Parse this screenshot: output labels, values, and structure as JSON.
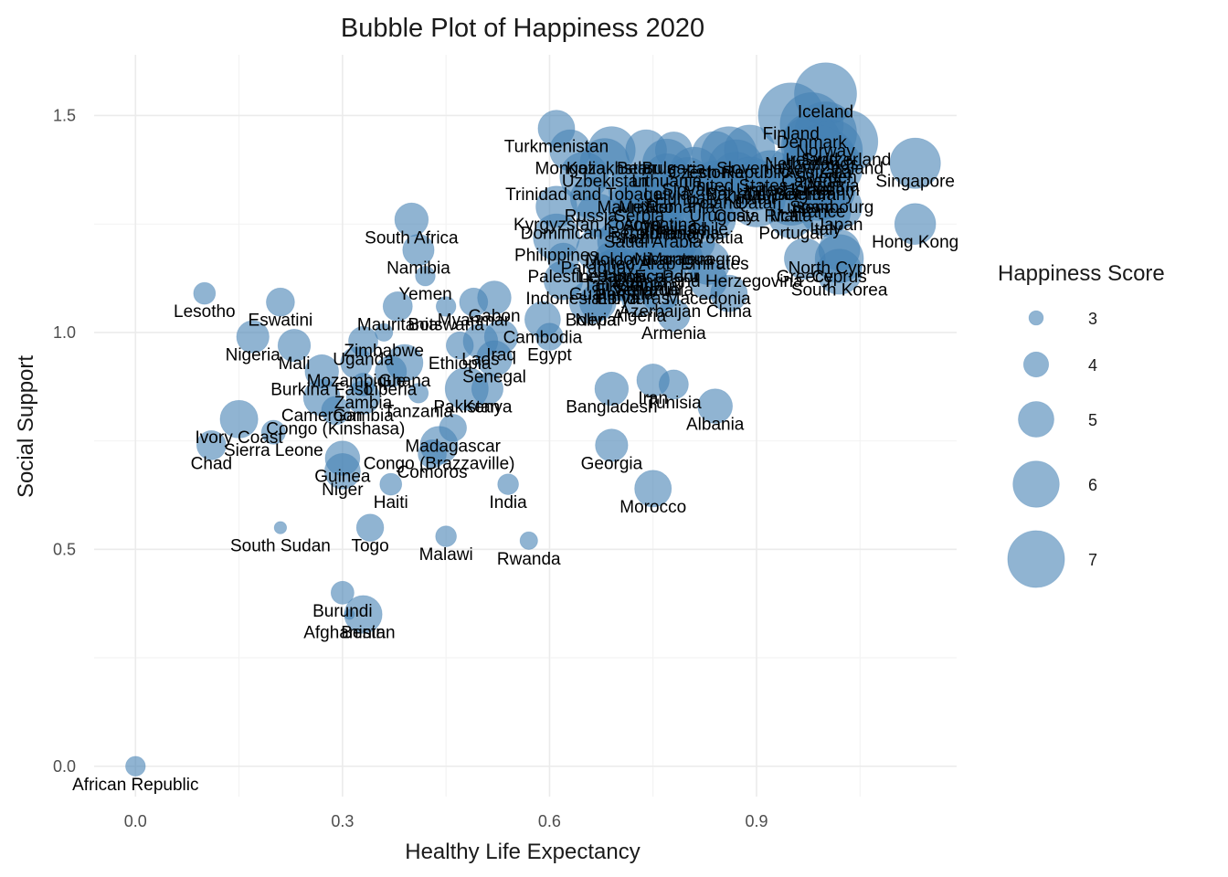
{
  "chart_data": {
    "type": "scatter",
    "title": "Bubble Plot of Happiness 2020",
    "xlabel": "Healthy Life Expectancy",
    "ylabel": "Social Support",
    "xlim": [
      -0.06,
      1.19
    ],
    "ylim": [
      -0.07,
      1.64
    ],
    "x_ticks": [
      0.0,
      0.3,
      0.6,
      0.9
    ],
    "x_tick_labels": [
      "0.0",
      "0.3",
      "0.6",
      "0.9"
    ],
    "y_ticks": [
      0.0,
      0.5,
      1.0,
      1.5
    ],
    "y_tick_labels": [
      "0.0",
      "0.5",
      "1.0",
      "1.5"
    ],
    "grid": true,
    "bubble_color": "#4682b4",
    "legend": {
      "title": "Happiness Score",
      "position": "right",
      "values": [
        3,
        4,
        5,
        6,
        7
      ],
      "labels": [
        "3",
        "4",
        "5",
        "6",
        "7"
      ]
    },
    "points": [
      {
        "label": "African Republic",
        "x": 0.0,
        "y": 0.0,
        "size": 3.5
      },
      {
        "label": "Lesotho",
        "x": 0.1,
        "y": 1.09,
        "size": 3.7
      },
      {
        "label": "Eswatini",
        "x": 0.21,
        "y": 1.07,
        "size": 4.3
      },
      {
        "label": "Nigeria",
        "x": 0.17,
        "y": 0.99,
        "size": 4.7
      },
      {
        "label": "Mali",
        "x": 0.23,
        "y": 0.97,
        "size": 4.7
      },
      {
        "label": "Ivory Coast",
        "x": 0.15,
        "y": 0.8,
        "size": 5.2
      },
      {
        "label": "Chad",
        "x": 0.11,
        "y": 0.74,
        "size": 4.4
      },
      {
        "label": "Sierra Leone",
        "x": 0.2,
        "y": 0.77,
        "size": 3.9
      },
      {
        "label": "South Sudan",
        "x": 0.21,
        "y": 0.55,
        "size": 2.8
      },
      {
        "label": "Burkina Faso",
        "x": 0.27,
        "y": 0.91,
        "size": 4.8
      },
      {
        "label": "Cameroon",
        "x": 0.27,
        "y": 0.85,
        "size": 5.1
      },
      {
        "label": "Congo (Kinshasa)",
        "x": 0.29,
        "y": 0.82,
        "size": 4.3
      },
      {
        "label": "Gambia",
        "x": 0.33,
        "y": 0.85,
        "size": 4.8
      },
      {
        "label": "Guinea",
        "x": 0.3,
        "y": 0.71,
        "size": 4.9
      },
      {
        "label": "Niger",
        "x": 0.3,
        "y": 0.68,
        "size": 5.0
      },
      {
        "label": "Mozambique",
        "x": 0.32,
        "y": 0.93,
        "size": 4.6
      },
      {
        "label": "Zambia",
        "x": 0.33,
        "y": 0.88,
        "size": 3.8
      },
      {
        "label": "Uganda",
        "x": 0.33,
        "y": 0.98,
        "size": 4.4
      },
      {
        "label": "Zimbabwe",
        "x": 0.36,
        "y": 1.0,
        "size": 3.3
      },
      {
        "label": "Liberia",
        "x": 0.37,
        "y": 0.91,
        "size": 4.6
      },
      {
        "label": "Ghana",
        "x": 0.39,
        "y": 0.93,
        "size": 5.1
      },
      {
        "label": "Tanzania",
        "x": 0.41,
        "y": 0.86,
        "size": 3.5
      },
      {
        "label": "Haiti",
        "x": 0.37,
        "y": 0.65,
        "size": 3.7
      },
      {
        "label": "Togo",
        "x": 0.34,
        "y": 0.55,
        "size": 4.2
      },
      {
        "label": "Burundi",
        "x": 0.3,
        "y": 0.4,
        "size": 3.8
      },
      {
        "label": "Afghanistan",
        "x": 0.31,
        "y": 0.35,
        "size": 2.6
      },
      {
        "label": "Benin",
        "x": 0.33,
        "y": 0.35,
        "size": 5.2
      },
      {
        "label": "Malawi",
        "x": 0.45,
        "y": 0.53,
        "size": 3.6
      },
      {
        "label": "Rwanda",
        "x": 0.57,
        "y": 0.52,
        "size": 3.3
      },
      {
        "label": "India",
        "x": 0.54,
        "y": 0.65,
        "size": 3.6
      },
      {
        "label": "Comoros",
        "x": 0.43,
        "y": 0.72,
        "size": 4.3
      },
      {
        "label": "Congo (Brazzaville)",
        "x": 0.44,
        "y": 0.74,
        "size": 5.2
      },
      {
        "label": "Madagascar",
        "x": 0.46,
        "y": 0.78,
        "size": 4.2
      },
      {
        "label": "Pakistan",
        "x": 0.48,
        "y": 0.87,
        "size": 5.7
      },
      {
        "label": "Kenya",
        "x": 0.51,
        "y": 0.87,
        "size": 4.6
      },
      {
        "label": "Senegal",
        "x": 0.52,
        "y": 0.94,
        "size": 5.0
      },
      {
        "label": "Ethiopia",
        "x": 0.47,
        "y": 0.97,
        "size": 4.2
      },
      {
        "label": "Laos",
        "x": 0.5,
        "y": 0.98,
        "size": 4.9
      },
      {
        "label": "Iraq",
        "x": 0.53,
        "y": 0.99,
        "size": 4.8
      },
      {
        "label": "Egypt",
        "x": 0.6,
        "y": 0.99,
        "size": 4.2
      },
      {
        "label": "Cambodia",
        "x": 0.59,
        "y": 1.03,
        "size": 5.0
      },
      {
        "label": "Mauritania",
        "x": 0.38,
        "y": 1.06,
        "size": 4.4
      },
      {
        "label": "Botswana",
        "x": 0.45,
        "y": 1.06,
        "size": 3.5
      },
      {
        "label": "Myanmar",
        "x": 0.49,
        "y": 1.07,
        "size": 4.3
      },
      {
        "label": "Gabon",
        "x": 0.52,
        "y": 1.08,
        "size": 4.8
      },
      {
        "label": "Yemen",
        "x": 0.42,
        "y": 1.13,
        "size": 3.5
      },
      {
        "label": "Namibia",
        "x": 0.41,
        "y": 1.19,
        "size": 4.6
      },
      {
        "label": "South Africa",
        "x": 0.4,
        "y": 1.26,
        "size": 4.8
      },
      {
        "label": "Nepal",
        "x": 0.67,
        "y": 1.07,
        "size": 5.1
      },
      {
        "label": "Armenia",
        "x": 0.78,
        "y": 1.04,
        "size": 4.7
      },
      {
        "label": "Bangladesh",
        "x": 0.69,
        "y": 0.87,
        "size": 4.8
      },
      {
        "label": "Iran",
        "x": 0.75,
        "y": 0.89,
        "size": 4.7
      },
      {
        "label": "Tunisia",
        "x": 0.78,
        "y": 0.88,
        "size": 4.4
      },
      {
        "label": "Albania",
        "x": 0.84,
        "y": 0.83,
        "size": 4.9
      },
      {
        "label": "Georgia",
        "x": 0.69,
        "y": 0.74,
        "size": 4.7
      },
      {
        "label": "Morocco",
        "x": 0.75,
        "y": 0.64,
        "size": 5.1
      },
      {
        "label": "Indonesia",
        "x": 0.62,
        "y": 1.12,
        "size": 5.3
      },
      {
        "label": "Bolivia",
        "x": 0.66,
        "y": 1.07,
        "size": 5.7
      },
      {
        "label": "Algeria",
        "x": 0.73,
        "y": 1.08,
        "size": 5.0
      },
      {
        "label": "Azerbaijan",
        "x": 0.76,
        "y": 1.09,
        "size": 5.2
      },
      {
        "label": "China",
        "x": 0.86,
        "y": 1.09,
        "size": 5.1
      },
      {
        "label": "Macedonia",
        "x": 0.83,
        "y": 1.12,
        "size": 5.2
      },
      {
        "label": "Philippines",
        "x": 0.61,
        "y": 1.22,
        "size": 6.0
      },
      {
        "label": "Palestine",
        "x": 0.62,
        "y": 1.17,
        "size": 4.6
      },
      {
        "label": "Paraguay",
        "x": 0.67,
        "y": 1.19,
        "size": 5.7
      },
      {
        "label": "Moldova",
        "x": 0.7,
        "y": 1.21,
        "size": 5.6
      },
      {
        "label": "Lebanon",
        "x": 0.69,
        "y": 1.17,
        "size": 4.8
      },
      {
        "label": "Jamaica",
        "x": 0.72,
        "y": 1.17,
        "size": 5.9
      },
      {
        "label": "Tajikistan",
        "x": 0.7,
        "y": 1.15,
        "size": 5.6
      },
      {
        "label": "Vietnam",
        "x": 0.74,
        "y": 1.15,
        "size": 5.4
      },
      {
        "label": "Ecuador",
        "x": 0.77,
        "y": 1.17,
        "size": 5.9
      },
      {
        "label": "Libya",
        "x": 0.7,
        "y": 1.12,
        "size": 5.5
      },
      {
        "label": "El Salvador",
        "x": 0.73,
        "y": 1.14,
        "size": 6.3
      },
      {
        "label": "Guatemala",
        "x": 0.69,
        "y": 1.13,
        "size": 6.4
      },
      {
        "label": "Honduras",
        "x": 0.72,
        "y": 1.12,
        "size": 5.9
      },
      {
        "label": "Venezuela",
        "x": 0.75,
        "y": 1.14,
        "size": 5.1
      },
      {
        "label": "Nicaragua",
        "x": 0.78,
        "y": 1.21,
        "size": 6.1
      },
      {
        "label": "Montenegro",
        "x": 0.81,
        "y": 1.21,
        "size": 5.5
      },
      {
        "label": "United Arab Emirates",
        "x": 0.77,
        "y": 1.2,
        "size": 6.8
      },
      {
        "label": "Bosnia and Herzegovina",
        "x": 0.83,
        "y": 1.16,
        "size": 5.7
      },
      {
        "label": "Peru",
        "x": 0.79,
        "y": 1.17,
        "size": 5.8
      },
      {
        "label": "Greece",
        "x": 0.97,
        "y": 1.17,
        "size": 5.5
      },
      {
        "label": "North Cyprus",
        "x": 1.02,
        "y": 1.19,
        "size": 5.5
      },
      {
        "label": "South Korea",
        "x": 1.02,
        "y": 1.14,
        "size": 5.9
      },
      {
        "label": "Cyprus",
        "x": 1.02,
        "y": 1.17,
        "size": 6.2
      },
      {
        "label": "Hong Kong",
        "x": 1.13,
        "y": 1.25,
        "size": 5.5
      },
      {
        "label": "Kyrgyzstan",
        "x": 0.61,
        "y": 1.29,
        "size": 5.5
      },
      {
        "label": "Dominican Republic",
        "x": 0.67,
        "y": 1.27,
        "size": 5.7
      },
      {
        "label": "Kosovo",
        "x": 0.72,
        "y": 1.29,
        "size": 6.3
      },
      {
        "label": "Saudi Arabia",
        "x": 0.75,
        "y": 1.25,
        "size": 6.4
      },
      {
        "label": "Argentina",
        "x": 0.76,
        "y": 1.29,
        "size": 6.0
      },
      {
        "label": "Croatia",
        "x": 0.84,
        "y": 1.26,
        "size": 5.5
      },
      {
        "label": "Chile",
        "x": 0.83,
        "y": 1.28,
        "size": 6.2
      },
      {
        "label": "Colombia",
        "x": 0.76,
        "y": 1.27,
        "size": 6.2
      },
      {
        "label": "Brazil",
        "x": 0.72,
        "y": 1.26,
        "size": 6.4
      },
      {
        "label": "Thailand",
        "x": 0.78,
        "y": 1.28,
        "size": 5.9
      },
      {
        "label": "Panama",
        "x": 0.8,
        "y": 1.27,
        "size": 6.3
      },
      {
        "label": "Uruguay",
        "x": 0.85,
        "y": 1.31,
        "size": 6.4
      },
      {
        "label": "Portugal",
        "x": 0.95,
        "y": 1.27,
        "size": 5.9
      },
      {
        "label": "Italy",
        "x": 1.0,
        "y": 1.28,
        "size": 6.4
      },
      {
        "label": "Japan",
        "x": 1.02,
        "y": 1.29,
        "size": 5.9
      },
      {
        "label": "Costa Rica",
        "x": 0.9,
        "y": 1.31,
        "size": 7.1
      },
      {
        "label": "Spain",
        "x": 0.98,
        "y": 1.33,
        "size": 6.4
      },
      {
        "label": "France",
        "x": 0.99,
        "y": 1.32,
        "size": 6.7
      },
      {
        "label": "Malta",
        "x": 0.95,
        "y": 1.31,
        "size": 6.8
      },
      {
        "label": "Singapore",
        "x": 1.13,
        "y": 1.39,
        "size": 6.4
      },
      {
        "label": "Russia",
        "x": 0.66,
        "y": 1.31,
        "size": 5.5
      },
      {
        "label": "Serbia",
        "x": 0.73,
        "y": 1.31,
        "size": 5.8
      },
      {
        "label": "Mauritius",
        "x": 0.72,
        "y": 1.33,
        "size": 6.1
      },
      {
        "label": "Trinidad and Tobago",
        "x": 0.65,
        "y": 1.36,
        "size": 6.2
      },
      {
        "label": "Romania",
        "x": 0.79,
        "y": 1.33,
        "size": 6.1
      },
      {
        "label": "Hungary",
        "x": 0.8,
        "y": 1.35,
        "size": 6.0
      },
      {
        "label": "Latvia",
        "x": 0.77,
        "y": 1.36,
        "size": 5.9
      },
      {
        "label": "Poland",
        "x": 0.84,
        "y": 1.34,
        "size": 6.2
      },
      {
        "label": "Mexico",
        "x": 0.74,
        "y": 1.33,
        "size": 6.5
      },
      {
        "label": "Slovakia",
        "x": 0.81,
        "y": 1.37,
        "size": 6.3
      },
      {
        "label": "Lithuania",
        "x": 0.77,
        "y": 1.39,
        "size": 6.2
      },
      {
        "label": "Kazakhstan",
        "x": 0.69,
        "y": 1.42,
        "size": 6.1
      },
      {
        "label": "Uzbekistan",
        "x": 0.68,
        "y": 1.39,
        "size": 6.3
      },
      {
        "label": "Mongolia",
        "x": 0.63,
        "y": 1.42,
        "size": 5.5
      },
      {
        "label": "Turkmenistan",
        "x": 0.61,
        "y": 1.47,
        "size": 5.1
      },
      {
        "label": "Belarus",
        "x": 0.74,
        "y": 1.42,
        "size": 5.5
      },
      {
        "label": "Bulgaria",
        "x": 0.78,
        "y": 1.42,
        "size": 5.1
      },
      {
        "label": "Estonia",
        "x": 0.84,
        "y": 1.41,
        "size": 6.0
      },
      {
        "label": "Slovenia",
        "x": 0.89,
        "y": 1.42,
        "size": 6.4
      },
      {
        "label": "Czech Republic",
        "x": 0.86,
        "y": 1.41,
        "size": 6.9
      },
      {
        "label": "Israel",
        "x": 0.98,
        "y": 1.37,
        "size": 7.1
      },
      {
        "label": "Taiwan",
        "x": 0.92,
        "y": 1.36,
        "size": 6.5
      },
      {
        "label": "Kuwait",
        "x": 0.89,
        "y": 1.35,
        "size": 6.1
      },
      {
        "label": "Bahrain",
        "x": 0.87,
        "y": 1.36,
        "size": 6.2
      },
      {
        "label": "Qatar",
        "x": 0.9,
        "y": 1.34,
        "size": 6.4
      },
      {
        "label": "Belgium",
        "x": 0.97,
        "y": 1.36,
        "size": 6.9
      },
      {
        "label": "Germany",
        "x": 0.99,
        "y": 1.36,
        "size": 7.1
      },
      {
        "label": "Austria",
        "x": 1.01,
        "y": 1.38,
        "size": 7.3
      },
      {
        "label": "Luxembourg",
        "x": 1.0,
        "y": 1.33,
        "size": 7.2
      },
      {
        "label": "United Kingdom",
        "x": 0.96,
        "y": 1.37,
        "size": 7.2
      },
      {
        "label": "Canada",
        "x": 0.98,
        "y": 1.39,
        "size": 7.2
      },
      {
        "label": "United States",
        "x": 0.87,
        "y": 1.38,
        "size": 6.9
      },
      {
        "label": "Sweden",
        "x": 1.0,
        "y": 1.4,
        "size": 7.4
      },
      {
        "label": "Australia",
        "x": 0.99,
        "y": 1.41,
        "size": 7.2
      },
      {
        "label": "Netherlands",
        "x": 0.98,
        "y": 1.43,
        "size": 7.4
      },
      {
        "label": "Ireland",
        "x": 0.98,
        "y": 1.44,
        "size": 7.1
      },
      {
        "label": "Switzerland",
        "x": 1.03,
        "y": 1.44,
        "size": 7.6
      },
      {
        "label": "Norway",
        "x": 1.0,
        "y": 1.46,
        "size": 7.5
      },
      {
        "label": "Denmark",
        "x": 0.98,
        "y": 1.48,
        "size": 7.6
      },
      {
        "label": "Finland",
        "x": 0.95,
        "y": 1.5,
        "size": 7.8
      },
      {
        "label": "New Zealand",
        "x": 1.01,
        "y": 1.42,
        "size": 7.3
      },
      {
        "label": "Iceland",
        "x": 1.0,
        "y": 1.55,
        "size": 7.5
      }
    ]
  }
}
